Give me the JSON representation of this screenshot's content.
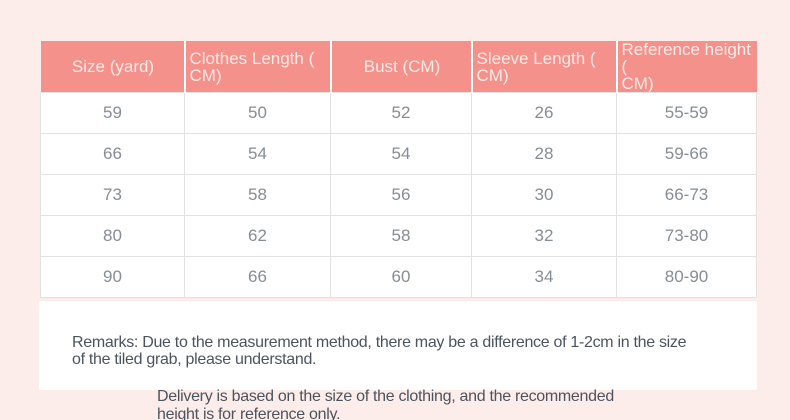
{
  "colors": {
    "page_bg": "#fcedea",
    "header_bg": "#f4918b",
    "header_text": "#ffeae8",
    "cell_text": "#858d95",
    "cell_border": "#e2e2e2",
    "panel_bg": "#ffffff",
    "remarks_text": "#4b545e"
  },
  "table": {
    "columns": [
      "Size (yard)",
      "Clothes Length (\nCM)",
      "Bust (CM)",
      "Sleeve Length (\nCM)",
      "Reference height (\nCM)"
    ],
    "rows": [
      [
        "59",
        "50",
        "52",
        "26",
        "55-59"
      ],
      [
        "66",
        "54",
        "54",
        "28",
        "59-66"
      ],
      [
        "73",
        "58",
        "56",
        "30",
        "66-73"
      ],
      [
        "80",
        "62",
        "58",
        "32",
        "73-80"
      ],
      [
        "90",
        "66",
        "60",
        "34",
        "80-90"
      ]
    ]
  },
  "remarks": {
    "main": "Remarks: Due to the measurement method, there may be a difference of 1-2cm in the size\nof the tiled grab, please understand.",
    "secondary": "Delivery is based on the size of the clothing, and the recommended\nheight is for reference only."
  }
}
